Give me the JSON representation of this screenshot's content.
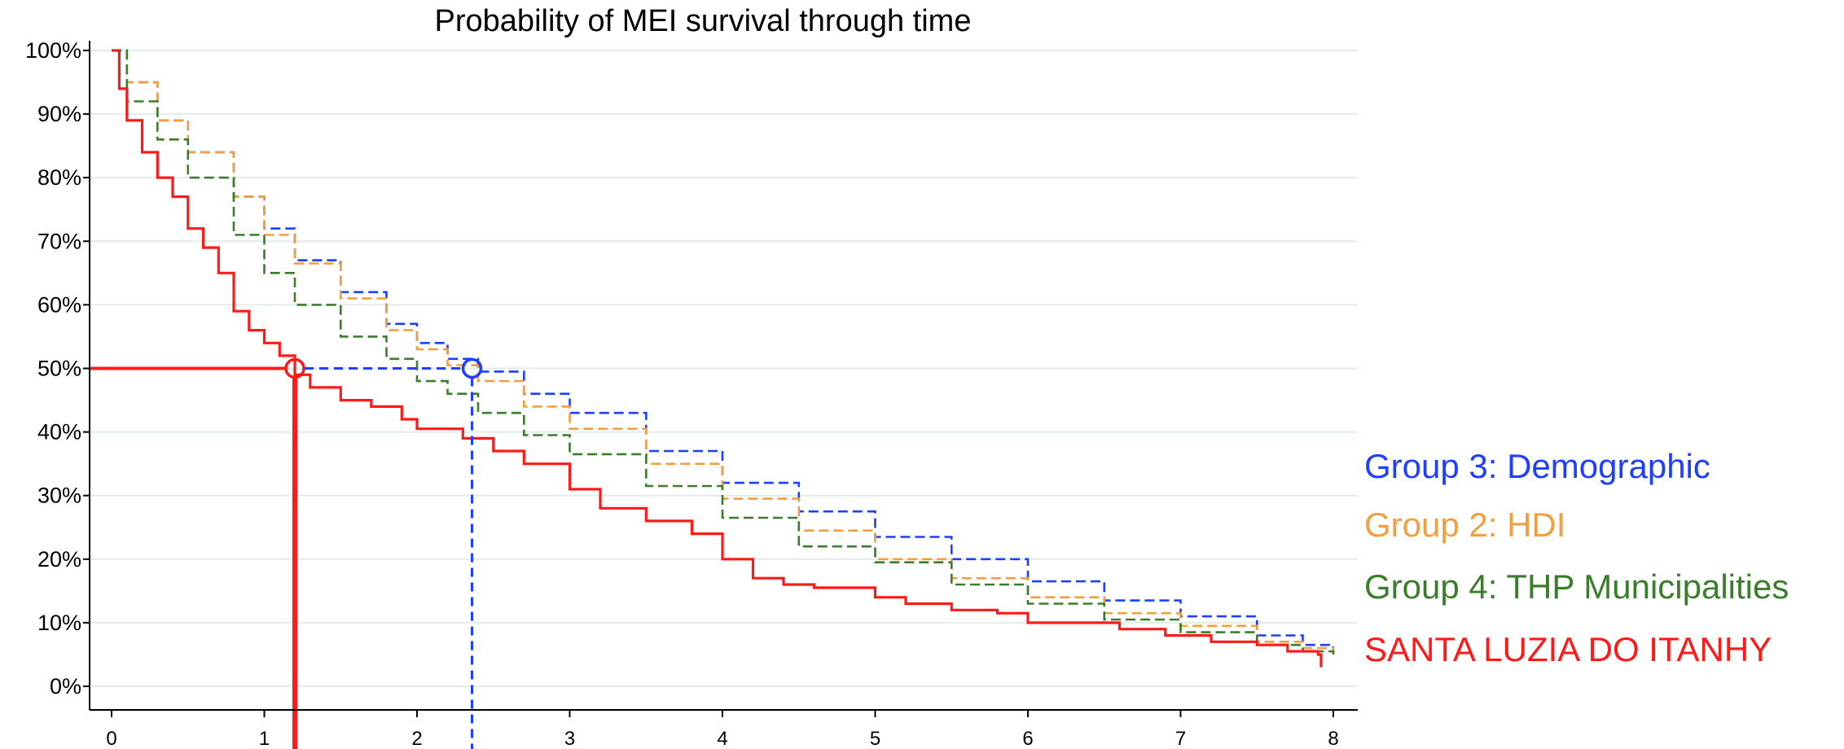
{
  "chart_data": {
    "type": "line",
    "title": "Probability of MEI survival through time",
    "xlabel": "",
    "ylabel": "",
    "xlim": [
      0,
      8
    ],
    "ylim": [
      0,
      100
    ],
    "x_ticks": [
      "0",
      "1",
      "2",
      "3",
      "4",
      "5",
      "6",
      "7",
      "8"
    ],
    "y_ticks": [
      "0%",
      "10%",
      "20%",
      "30%",
      "40%",
      "50%",
      "60%",
      "70%",
      "80%",
      "90%",
      "100%"
    ],
    "grid": "horizontal",
    "legend": "right",
    "series": [
      {
        "name": "Group 3: Demographic",
        "color": "#1f3fff",
        "dash": true,
        "points": [
          [
            0,
            100
          ],
          [
            0.1,
            95
          ],
          [
            0.3,
            89
          ],
          [
            0.5,
            84
          ],
          [
            0.8,
            77
          ],
          [
            1,
            72
          ],
          [
            1.2,
            67
          ],
          [
            1.5,
            62
          ],
          [
            1.8,
            57
          ],
          [
            2,
            54
          ],
          [
            2.2,
            51.5
          ],
          [
            2.4,
            49.5
          ],
          [
            2.7,
            46
          ],
          [
            3,
            43
          ],
          [
            3.5,
            37
          ],
          [
            4,
            32
          ],
          [
            4.5,
            27.5
          ],
          [
            5,
            23.5
          ],
          [
            5.5,
            20
          ],
          [
            6,
            16.5
          ],
          [
            6.5,
            13.5
          ],
          [
            7,
            11
          ],
          [
            7.5,
            8
          ],
          [
            7.8,
            6.5
          ],
          [
            8,
            6
          ]
        ]
      },
      {
        "name": "Group 2: HDI",
        "color": "#f0a040",
        "dash": true,
        "points": [
          [
            0,
            100
          ],
          [
            0.1,
            95
          ],
          [
            0.3,
            89
          ],
          [
            0.5,
            84
          ],
          [
            0.8,
            77
          ],
          [
            1,
            71
          ],
          [
            1.2,
            66.5
          ],
          [
            1.5,
            61
          ],
          [
            1.8,
            56
          ],
          [
            2,
            53
          ],
          [
            2.2,
            50.5
          ],
          [
            2.4,
            48
          ],
          [
            2.7,
            44
          ],
          [
            3,
            40.5
          ],
          [
            3.5,
            35
          ],
          [
            4,
            29.5
          ],
          [
            4.5,
            24.5
          ],
          [
            5,
            20
          ],
          [
            5.5,
            17
          ],
          [
            6,
            14
          ],
          [
            6.5,
            11.5
          ],
          [
            7,
            9.5
          ],
          [
            7.5,
            7
          ],
          [
            7.8,
            6
          ],
          [
            8,
            5
          ]
        ]
      },
      {
        "name": "Group 4: THP Municipalities",
        "color": "#3a7d2a",
        "dash": true,
        "points": [
          [
            0,
            100
          ],
          [
            0.1,
            92
          ],
          [
            0.3,
            86
          ],
          [
            0.5,
            80
          ],
          [
            0.8,
            71
          ],
          [
            1,
            65
          ],
          [
            1.2,
            60
          ],
          [
            1.5,
            55
          ],
          [
            1.8,
            51.5
          ],
          [
            2,
            48
          ],
          [
            2.2,
            46
          ],
          [
            2.4,
            43
          ],
          [
            2.7,
            39.5
          ],
          [
            3,
            36.5
          ],
          [
            3.5,
            31.5
          ],
          [
            4,
            26.5
          ],
          [
            4.5,
            22
          ],
          [
            5,
            19.5
          ],
          [
            5.5,
            16
          ],
          [
            6,
            13
          ],
          [
            6.5,
            10.5
          ],
          [
            7,
            8.5
          ],
          [
            7.5,
            6.5
          ],
          [
            7.8,
            5.5
          ],
          [
            8,
            5
          ]
        ]
      },
      {
        "name": "SANTA LUZIA DO ITANHY",
        "color": "#ff1a1a",
        "dash": false,
        "points": [
          [
            0,
            100
          ],
          [
            0.05,
            94
          ],
          [
            0.1,
            89
          ],
          [
            0.2,
            84
          ],
          [
            0.3,
            80
          ],
          [
            0.4,
            77
          ],
          [
            0.5,
            72
          ],
          [
            0.6,
            69
          ],
          [
            0.7,
            65
          ],
          [
            0.8,
            59
          ],
          [
            0.9,
            56
          ],
          [
            1,
            54
          ],
          [
            1.1,
            52
          ],
          [
            1.2,
            49
          ],
          [
            1.3,
            47
          ],
          [
            1.5,
            45
          ],
          [
            1.7,
            44
          ],
          [
            1.9,
            42
          ],
          [
            2,
            40.5
          ],
          [
            2.3,
            39
          ],
          [
            2.5,
            37
          ],
          [
            2.7,
            35
          ],
          [
            3,
            31
          ],
          [
            3.2,
            28
          ],
          [
            3.5,
            26
          ],
          [
            3.8,
            24
          ],
          [
            4,
            20
          ],
          [
            4.2,
            17
          ],
          [
            4.4,
            16
          ],
          [
            4.6,
            15.5
          ],
          [
            4.9,
            15.5
          ],
          [
            5,
            14
          ],
          [
            5.2,
            13
          ],
          [
            5.5,
            12
          ],
          [
            5.8,
            11.5
          ],
          [
            6,
            10
          ],
          [
            6.4,
            10
          ],
          [
            6.6,
            9
          ],
          [
            6.9,
            8
          ],
          [
            7.2,
            7
          ],
          [
            7.5,
            6.5
          ],
          [
            7.7,
            5.5
          ],
          [
            7.9,
            5
          ],
          [
            7.92,
            3
          ]
        ]
      }
    ],
    "annotations": [
      {
        "x": 1.2,
        "y": 50,
        "color": "#ff1a1a",
        "style": "solid"
      },
      {
        "x": 2.36,
        "y": 50,
        "color": "#1f3fff",
        "style": "dashed"
      }
    ]
  }
}
